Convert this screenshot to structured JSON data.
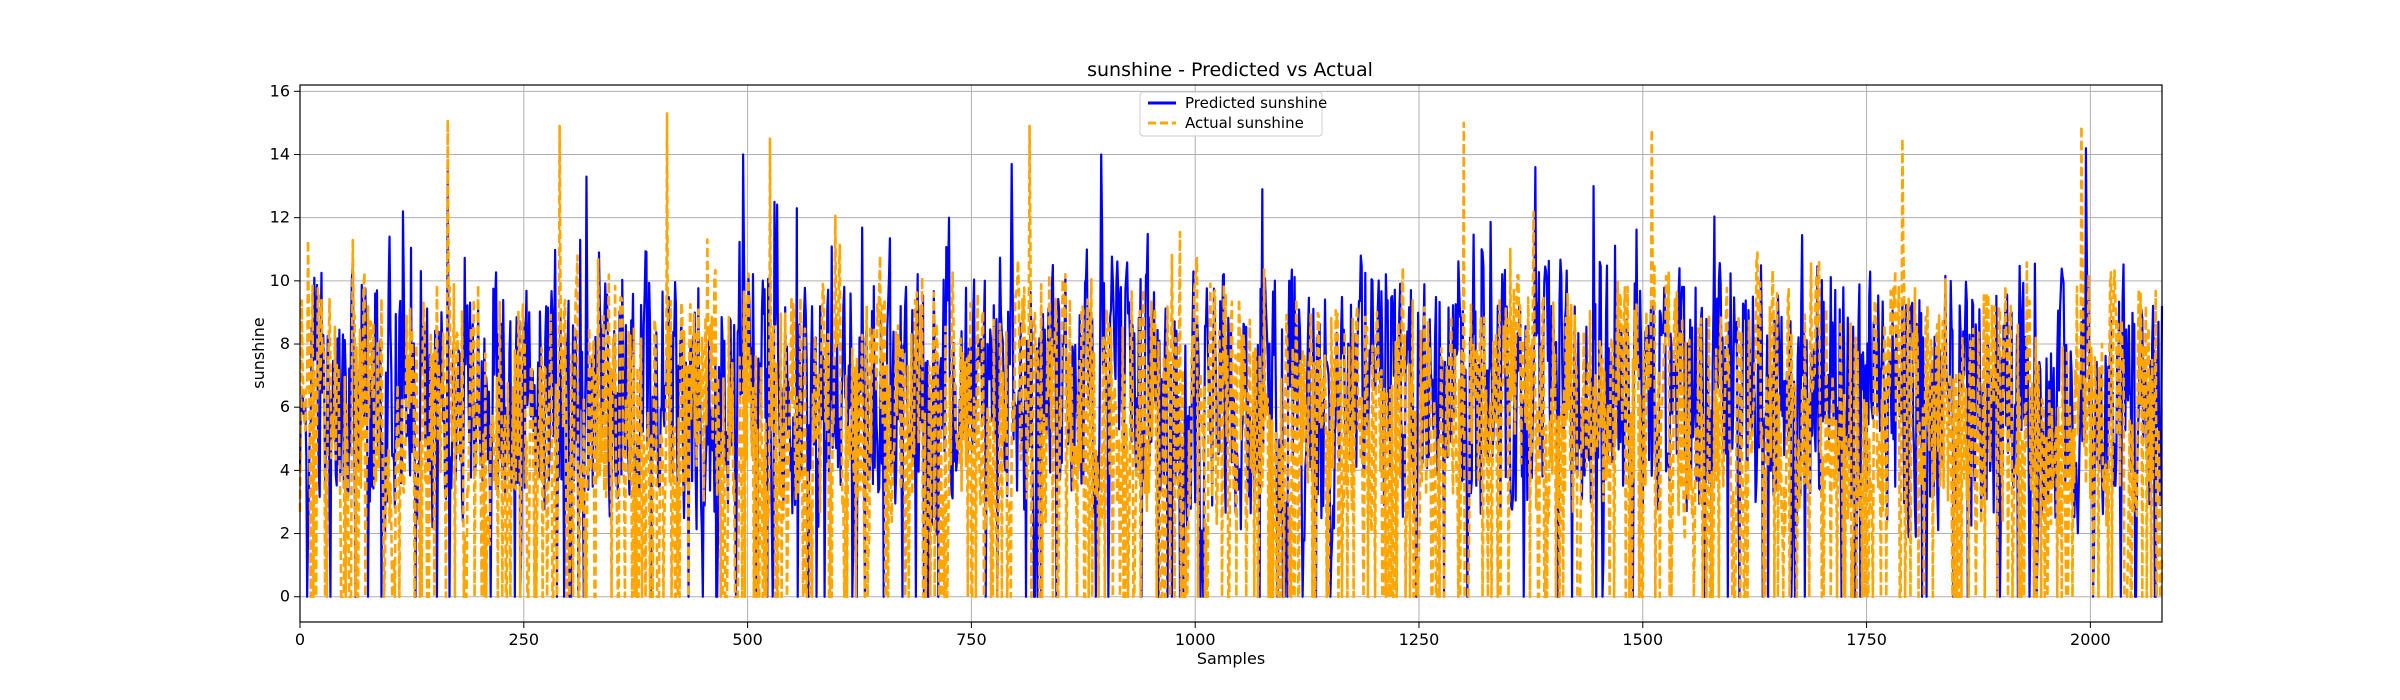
{
  "chart_data": {
    "type": "line",
    "title": "sunshine - Predicted vs Actual",
    "xlabel": "Samples",
    "ylabel": "sunshine",
    "xlim": [
      0,
      2080
    ],
    "ylim": [
      -0.8,
      16.2
    ],
    "xticks": [
      0,
      250,
      500,
      750,
      1000,
      1250,
      1500,
      1750,
      2000
    ],
    "yticks": [
      0,
      2,
      4,
      6,
      8,
      10,
      12,
      14,
      16
    ],
    "grid": true,
    "legend_position": "top-center",
    "n_samples": 2080,
    "series": [
      {
        "name": "Predicted sunshine",
        "color": "#0000ff",
        "style": "solid",
        "summary": {
          "min": 0.0,
          "max": 14.2,
          "typical_range": [
            2,
            10
          ]
        },
        "highlights": [
          [
            0,
            4.0
          ],
          [
            100,
            11.4
          ],
          [
            115,
            12.2
          ],
          [
            165,
            13.8
          ],
          [
            320,
            13.3
          ],
          [
            495,
            14.0
          ],
          [
            530,
            12.5
          ],
          [
            555,
            12.3
          ],
          [
            725,
            12.0
          ],
          [
            795,
            13.7
          ],
          [
            895,
            14.0
          ],
          [
            1075,
            12.9
          ],
          [
            1185,
            10.8
          ],
          [
            1320,
            11.0
          ],
          [
            1380,
            13.6
          ],
          [
            1445,
            13.0
          ],
          [
            1585,
            10.0
          ],
          [
            1995,
            14.2
          ],
          [
            2080,
            9.2
          ]
        ]
      },
      {
        "name": "Actual sunshine",
        "color": "#ffa500",
        "style": "dashed",
        "summary": {
          "min": 0.0,
          "max": 15.3,
          "typical_range": [
            0,
            12
          ]
        },
        "highlights": [
          [
            165,
            15.1
          ],
          [
            290,
            14.9
          ],
          [
            410,
            15.3
          ],
          [
            525,
            14.5
          ],
          [
            815,
            14.9
          ],
          [
            1300,
            15.0
          ],
          [
            1510,
            14.8
          ],
          [
            1790,
            14.5
          ],
          [
            1990,
            14.9
          ]
        ]
      }
    ]
  }
}
